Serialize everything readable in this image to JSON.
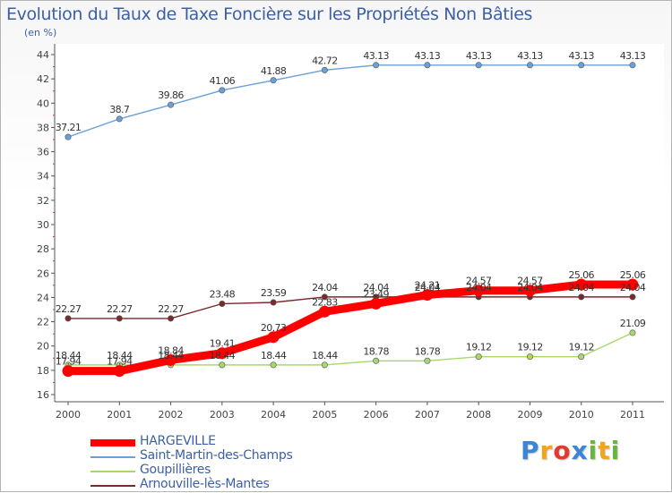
{
  "chart_data": {
    "type": "line",
    "title": "Evolution du Taux de Taxe Foncière sur les Propriétés Non Bâties",
    "ylabel": "(en %)",
    "xlabel": "",
    "ylim": [
      16,
      44
    ],
    "yticks": [
      16,
      18,
      20,
      22,
      24,
      26,
      28,
      30,
      32,
      34,
      36,
      38,
      40,
      42,
      44
    ],
    "categories": [
      "2000",
      "2001",
      "2002",
      "2003",
      "2004",
      "2005",
      "2006",
      "2007",
      "2008",
      "2009",
      "2010",
      "2011"
    ],
    "grid": false,
    "legend_position": "bottom-left",
    "series": [
      {
        "name": "HARGEVILLE",
        "color": "#ff0000",
        "values": [
          17.94,
          17.94,
          18.84,
          19.41,
          20.73,
          22.83,
          23.49,
          24.21,
          24.57,
          24.57,
          25.06,
          25.06
        ],
        "labels": [
          "17.94",
          "17.94",
          "18.84",
          "19.41",
          "20.73",
          "22.83",
          "23.49",
          "24.21",
          "24.57",
          "24.57",
          "25.06",
          "25.06"
        ]
      },
      {
        "name": "Saint-Martin-des-Champs",
        "color": "#6aa0d8",
        "values": [
          37.21,
          38.7,
          39.86,
          41.06,
          41.88,
          42.72,
          43.13,
          43.13,
          43.13,
          43.13,
          43.13,
          43.13
        ],
        "labels": [
          "37.21",
          "38.7",
          "39.86",
          "41.06",
          "41.88",
          "42.72",
          "43.13",
          "43.13",
          "43.13",
          "43.13",
          "43.13",
          "43.13"
        ]
      },
      {
        "name": "Goupillières",
        "color": "#a6d96a",
        "values": [
          18.44,
          18.44,
          18.44,
          18.44,
          18.44,
          18.44,
          18.78,
          18.78,
          19.12,
          19.12,
          19.12,
          21.09
        ],
        "labels": [
          "18.44",
          "18.44",
          "18.44",
          "18.44",
          "18.44",
          "18.44",
          "18.78",
          "18.78",
          "19.12",
          "19.12",
          "19.12",
          "21.09"
        ]
      },
      {
        "name": "Arnouville-lès-Mantes",
        "color": "#7a2a2a",
        "values": [
          22.27,
          22.27,
          22.27,
          23.48,
          23.59,
          24.04,
          24.04,
          24.04,
          24.04,
          24.04,
          24.04,
          24.04
        ],
        "labels": [
          "22.27",
          "22.27",
          "22.27",
          "23.48",
          "23.59",
          "24.04",
          "24.04",
          "24.04",
          "24.04",
          "24.04",
          "24.04",
          "24.04"
        ]
      }
    ]
  },
  "logo": {
    "letters": [
      "P",
      "r",
      "o",
      "x",
      "i",
      "t",
      "i"
    ],
    "colors": [
      "#3b86d6",
      "#f2a51a",
      "#e23b2e",
      "#3b86d6",
      "#67b83a",
      "#f2a51a",
      "#67b83a"
    ]
  }
}
